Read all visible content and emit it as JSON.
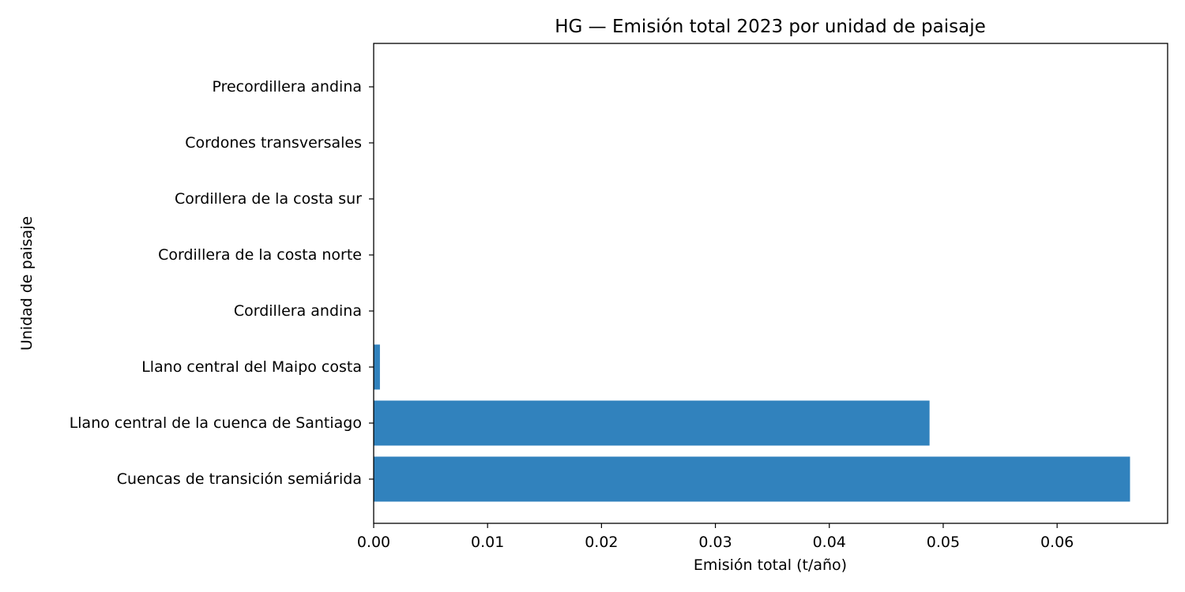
{
  "chart_data": {
    "type": "bar",
    "orientation": "horizontal",
    "title": "HG — Emisión total 2023 por unidad de paisaje",
    "xlabel": "Emisión total (t/año)",
    "ylabel": "Unidad de paisaje",
    "categories": [
      "Cuencas de transición semiárida",
      "Llano central de la cuenca de Santiago",
      "Llano central del Maipo costa",
      "Cordillera andina",
      "Cordillera de la costa norte",
      "Cordillera de la costa sur",
      "Cordones transversales",
      "Precordillera andina"
    ],
    "values": [
      0.0664,
      0.0488,
      0.00055,
      0,
      0,
      0,
      0,
      0
    ],
    "xlim": [
      0,
      0.0697
    ],
    "xticks": [
      0.0,
      0.01,
      0.02,
      0.03,
      0.04,
      0.05,
      0.06
    ],
    "xtick_labels": [
      "0.00",
      "0.01",
      "0.02",
      "0.03",
      "0.04",
      "0.05",
      "0.06"
    ],
    "bar_color": "#3182bd",
    "grid": false,
    "legend": "none"
  }
}
